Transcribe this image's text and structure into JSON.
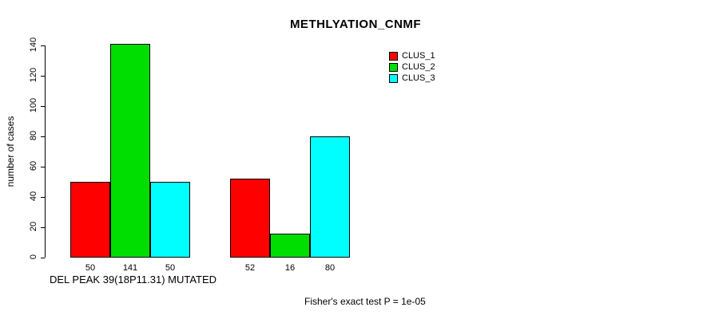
{
  "chart_data": {
    "type": "bar",
    "title": "METHLYATION_CNMF",
    "ylabel": "number of cases",
    "xlabel": "DEL PEAK 39(18P11.31) MUTATED",
    "footnote": "Fisher's exact test P = 1e-05",
    "ylim": [
      0,
      140
    ],
    "yticks": [
      0,
      20,
      40,
      60,
      80,
      100,
      120,
      140
    ],
    "categories": [
      "DEL PEAK 39(18P11.31) MUTATED",
      ""
    ],
    "series": [
      {
        "name": "CLUS_1",
        "color": "#FF0000",
        "values": [
          50,
          52
        ]
      },
      {
        "name": "CLUS_2",
        "color": "#00DD00",
        "values": [
          141,
          16
        ]
      },
      {
        "name": "CLUS_3",
        "color": "#00FFFF",
        "values": [
          50,
          80
        ]
      }
    ],
    "bar_value_labels": [
      [
        50,
        141,
        50
      ],
      [
        52,
        16,
        80
      ]
    ],
    "legend_position": "top-right",
    "grid": false
  }
}
